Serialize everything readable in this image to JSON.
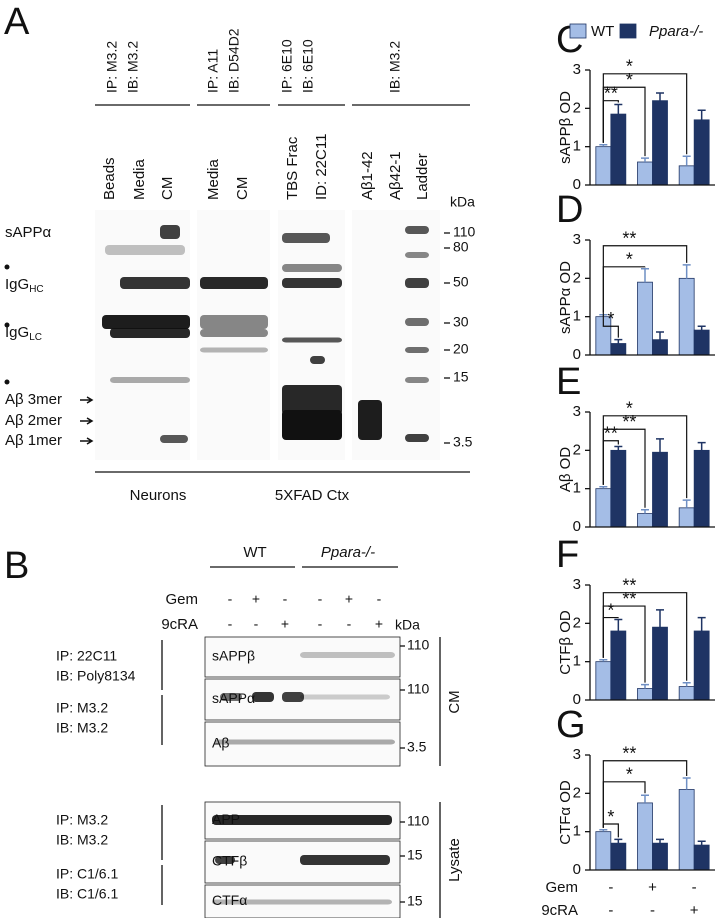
{
  "panel_a": {
    "label": "A",
    "groups": [
      {
        "lines": [
          "IP: M3.2",
          "IB: M3.2"
        ]
      },
      {
        "lines": [
          "IP: A11",
          "IB: D54D2"
        ]
      },
      {
        "lines": [
          "IP: 6E10",
          "IB: 6E10"
        ]
      },
      {
        "lines": [
          "IB: M3.2"
        ]
      }
    ],
    "lanes": [
      "Beads",
      "Media",
      "CM",
      "Media",
      "CM",
      "TBS Frac",
      "ID: 22C11",
      "Aβ1-42",
      "Aβ42-1",
      "Ladder"
    ],
    "kda": "kDa",
    "bands": [
      {
        "text": "sAPPα"
      },
      {
        "text": "IgG",
        "sub": "HC"
      },
      {
        "text": "IgG",
        "sub": "LC"
      },
      {
        "text": "Aβ 3mer"
      },
      {
        "text": "Aβ 2mer"
      },
      {
        "text": "Aβ 1mer"
      }
    ],
    "markers": [
      110,
      80,
      50,
      30,
      20,
      15,
      3.5
    ],
    "sources": [
      "Neurons",
      "5XFAD Ctx"
    ]
  },
  "panel_b": {
    "label": "B",
    "genotypes": [
      "WT",
      "Ppara-/-"
    ],
    "treatments": [
      {
        "name": "Gem",
        "signs": [
          "-",
          "+",
          "-",
          "-",
          "+",
          "-"
        ]
      },
      {
        "name": "9cRA",
        "signs": [
          "-",
          "-",
          "+",
          "-",
          "-",
          "+"
        ]
      }
    ],
    "kda": "kDa",
    "antibodies": [
      [
        "IP: 22C11",
        "IB: Poly8134"
      ],
      [
        "IP: M3.2",
        "IB: M3.2"
      ],
      [
        "IP: M3.2",
        "IB: M3.2"
      ],
      [
        "IP: C1/6.1",
        "IB: C1/6.1"
      ]
    ],
    "rows": [
      "sAPPβ",
      "sAPPα",
      "Aβ",
      "APP",
      "CTFβ",
      "CTFα"
    ],
    "markers": [
      110,
      110,
      3.5,
      110,
      15,
      15
    ],
    "fractions": [
      "CM",
      "Lysate"
    ]
  },
  "chart_data": [
    {
      "type": "bar",
      "panel": "C",
      "ylabel": "sAPPβ OD",
      "categories": [
        null,
        null,
        null
      ],
      "ylim": [
        0,
        3
      ],
      "yticks": [
        0,
        1,
        2,
        3
      ],
      "legend": "top",
      "series": [
        {
          "name": "WT",
          "color": "#a4bde6",
          "values": [
            1,
            0.6,
            0.5
          ],
          "errors": [
            0.05,
            0.1,
            0.25
          ]
        },
        {
          "name": "Ppara-/-",
          "color": "#1f3464",
          "values": [
            1.85,
            2.2,
            1.7
          ],
          "errors": [
            0.25,
            0.2,
            0.25
          ]
        }
      ],
      "annotations": [
        "**",
        "*",
        "*"
      ]
    },
    {
      "type": "bar",
      "panel": "D",
      "ylabel": "sAPPα OD",
      "categories": [
        null,
        null,
        null
      ],
      "ylim": [
        0,
        3
      ],
      "yticks": [
        0,
        1,
        2,
        3
      ],
      "series": [
        {
          "color": "#a4bde6",
          "values": [
            1,
            1.9,
            2.0
          ],
          "errors": [
            0.05,
            0.35,
            0.35
          ]
        },
        {
          "color": "#1f3464",
          "values": [
            0.3,
            0.4,
            0.65
          ],
          "errors": [
            0.1,
            0.2,
            0.1
          ]
        }
      ],
      "annotations": [
        "*",
        "*",
        "**"
      ]
    },
    {
      "type": "bar",
      "panel": "E",
      "ylabel": "Aβ OD",
      "categories": [
        null,
        null,
        null
      ],
      "ylim": [
        0,
        3
      ],
      "yticks": [
        0,
        1,
        2,
        3
      ],
      "series": [
        {
          "color": "#a4bde6",
          "values": [
            1,
            0.35,
            0.5
          ],
          "errors": [
            0.05,
            0.1,
            0.2
          ]
        },
        {
          "color": "#1f3464",
          "values": [
            2.0,
            1.95,
            2.0
          ],
          "errors": [
            0.1,
            0.35,
            0.2
          ]
        }
      ],
      "annotations": [
        "**",
        "**",
        "*"
      ]
    },
    {
      "type": "bar",
      "panel": "F",
      "ylabel": "CTFβ OD",
      "categories": [
        null,
        null,
        null
      ],
      "ylim": [
        0,
        3
      ],
      "yticks": [
        0,
        1,
        2,
        3
      ],
      "series": [
        {
          "color": "#a4bde6",
          "values": [
            1,
            0.3,
            0.35
          ],
          "errors": [
            0.05,
            0.1,
            0.1
          ]
        },
        {
          "color": "#1f3464",
          "values": [
            1.8,
            1.9,
            1.8
          ],
          "errors": [
            0.3,
            0.45,
            0.35
          ]
        }
      ],
      "annotations": [
        "*",
        "**",
        "**"
      ]
    },
    {
      "type": "bar",
      "panel": "G",
      "ylabel": "CTFα OD",
      "categories": [
        null,
        null,
        null
      ],
      "ylim": [
        0,
        3
      ],
      "yticks": [
        0,
        1,
        2,
        3
      ],
      "series": [
        {
          "color": "#a4bde6",
          "values": [
            1,
            1.75,
            2.1
          ],
          "errors": [
            0.05,
            0.2,
            0.3
          ]
        },
        {
          "color": "#1f3464",
          "values": [
            0.7,
            0.7,
            0.65
          ],
          "errors": [
            0.1,
            0.1,
            0.1
          ]
        }
      ],
      "annotations": [
        "*",
        "*",
        "**"
      ],
      "x_label_rows": [
        {
          "name": "Gem",
          "labels": [
            "-",
            "+",
            "-"
          ]
        },
        {
          "name": "9cRA",
          "labels": [
            "-",
            "-",
            "+"
          ]
        }
      ]
    }
  ]
}
